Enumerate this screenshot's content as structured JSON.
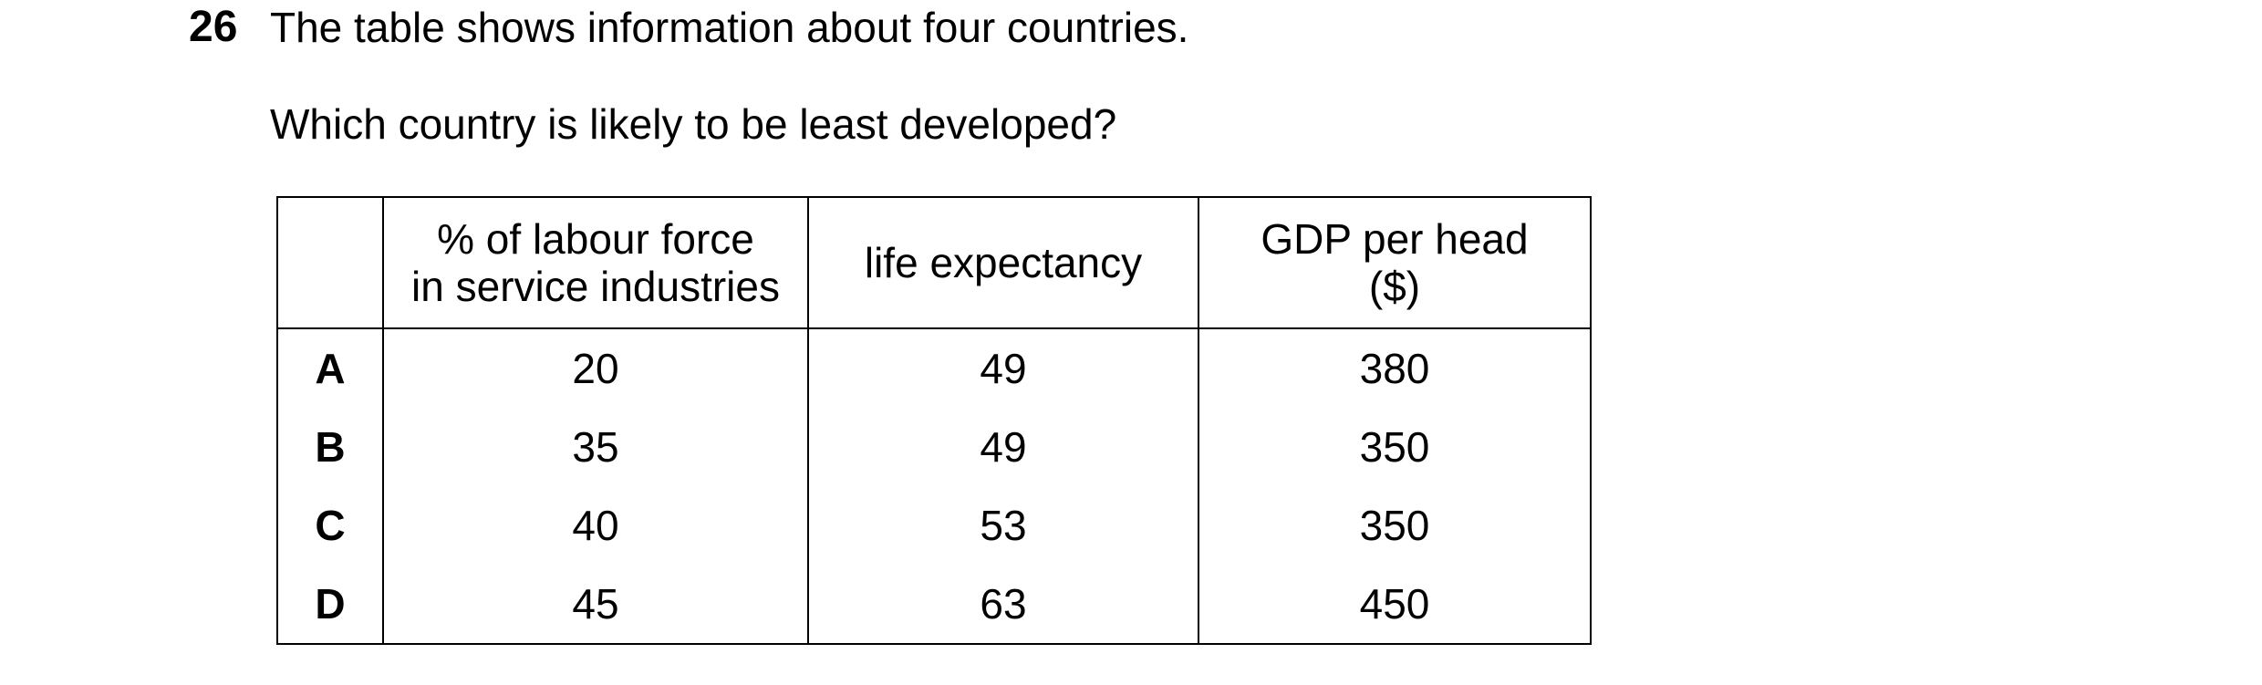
{
  "question": {
    "number": "26",
    "text": "The table shows information about four countries.",
    "prompt": "Which country is likely to be least developed?"
  },
  "table": {
    "headers": [
      {
        "lines": [
          ""
        ]
      },
      {
        "lines": [
          "% of labour force",
          "in service industries"
        ]
      },
      {
        "lines": [
          "life expectancy"
        ]
      },
      {
        "lines": [
          "GDP per head",
          "($)"
        ]
      }
    ],
    "rows": [
      {
        "label": "A",
        "labour": "20",
        "life": "49",
        "gdp": "380"
      },
      {
        "label": "B",
        "labour": "35",
        "life": "49",
        "gdp": "350"
      },
      {
        "label": "C",
        "labour": "40",
        "life": "53",
        "gdp": "350"
      },
      {
        "label": "D",
        "labour": "45",
        "life": "63",
        "gdp": "450"
      }
    ]
  }
}
